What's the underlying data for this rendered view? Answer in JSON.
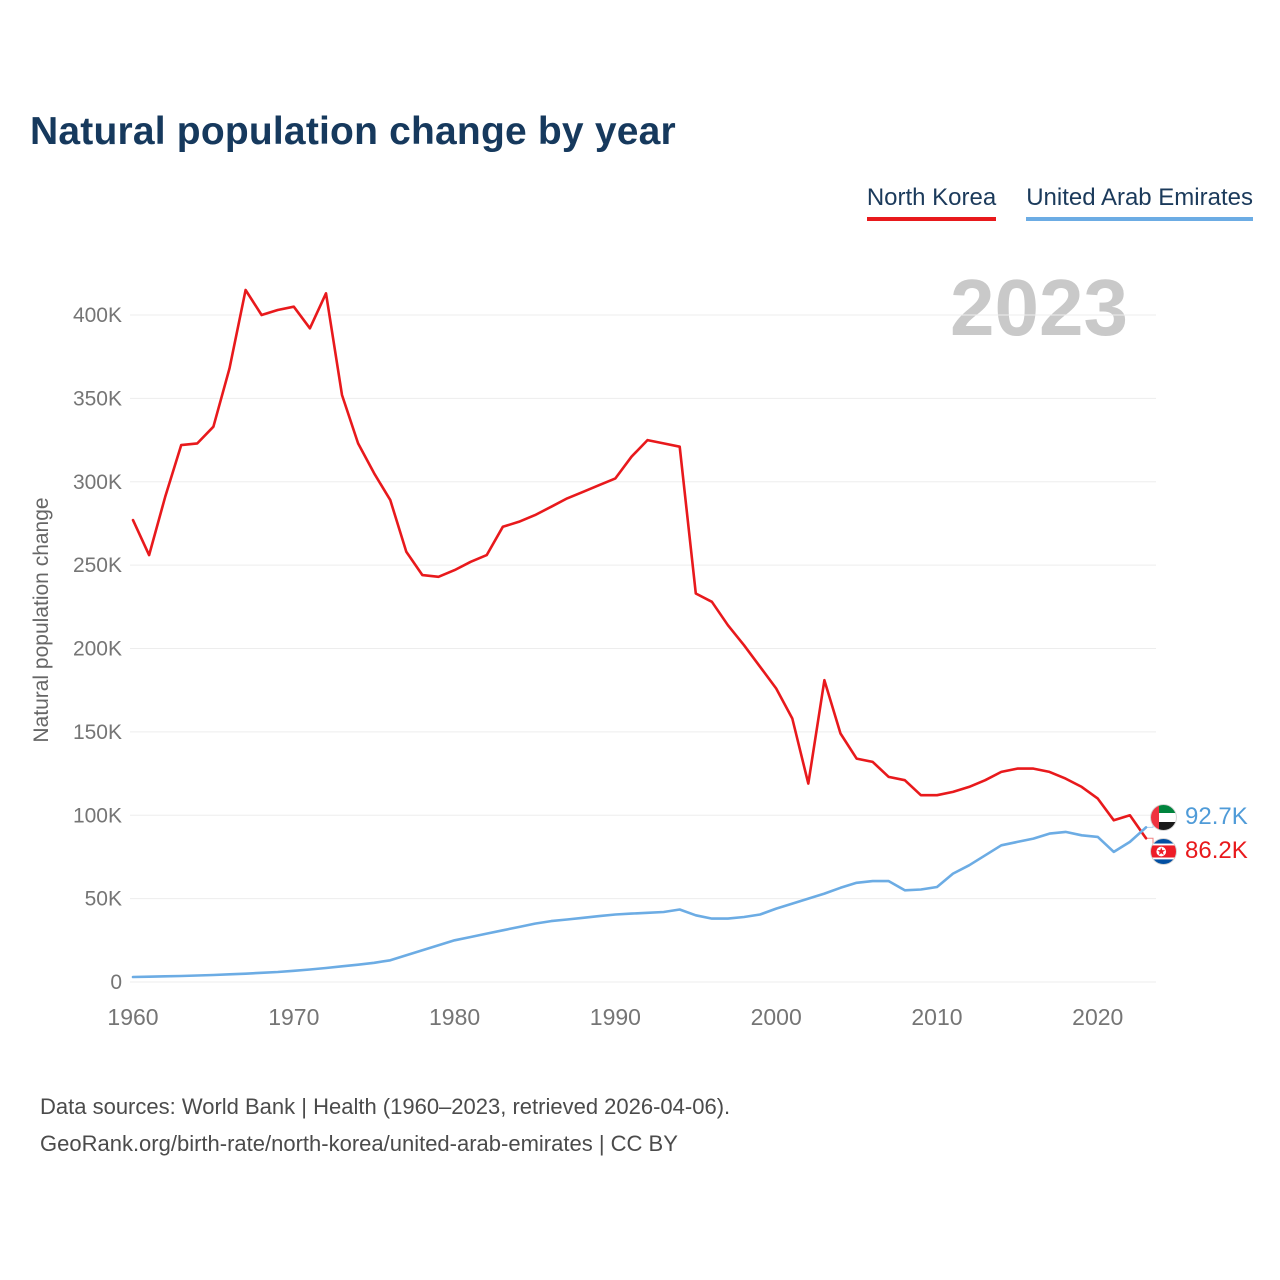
{
  "page": {
    "title": "Natural population change by year",
    "watermark": "2023",
    "y_axis_label": "Natural population change",
    "footer_line1": "Data sources: World Bank | Health (1960–2023, retrieved 2026-04-06).",
    "footer_line2": "GeoRank.org/birth-rate/north-korea/united-arab-emirates | CC BY"
  },
  "legend": [
    {
      "label": "North Korea",
      "color": "#e8191c"
    },
    {
      "label": "United Arab Emirates",
      "color": "#6cace4"
    }
  ],
  "end_labels": [
    {
      "country": "United Arab Emirates",
      "flag": "uae-flag",
      "value": "92.7K",
      "color": "#4f9bd8"
    },
    {
      "country": "North Korea",
      "flag": "north-korea-flag",
      "value": "86.2K",
      "color": "#e8191c"
    }
  ],
  "chart_data": {
    "type": "line",
    "title": "Natural population change by year",
    "xlabel": "",
    "ylabel": "Natural population change",
    "ylim": [
      0,
      430000
    ],
    "grid": "horizontal",
    "legend_position": "top-right",
    "x": [
      1960,
      1961,
      1962,
      1963,
      1964,
      1965,
      1966,
      1967,
      1968,
      1969,
      1970,
      1971,
      1972,
      1973,
      1974,
      1975,
      1976,
      1977,
      1978,
      1979,
      1980,
      1981,
      1982,
      1983,
      1984,
      1985,
      1986,
      1987,
      1988,
      1989,
      1990,
      1991,
      1992,
      1993,
      1994,
      1995,
      1996,
      1997,
      1998,
      1999,
      2000,
      2001,
      2002,
      2003,
      2004,
      2005,
      2006,
      2007,
      2008,
      2009,
      2010,
      2011,
      2012,
      2013,
      2014,
      2015,
      2016,
      2017,
      2018,
      2019,
      2020,
      2021,
      2022,
      2023
    ],
    "x_ticks": [
      {
        "value": 1960,
        "label": "1960"
      },
      {
        "value": 1970,
        "label": "1970"
      },
      {
        "value": 1980,
        "label": "1980"
      },
      {
        "value": 1990,
        "label": "1990"
      },
      {
        "value": 2000,
        "label": "2000"
      },
      {
        "value": 2010,
        "label": "2010"
      },
      {
        "value": 2020,
        "label": "2020"
      }
    ],
    "y_ticks": [
      {
        "value": 0,
        "label": "0"
      },
      {
        "value": 50000,
        "label": "50K"
      },
      {
        "value": 100000,
        "label": "100K"
      },
      {
        "value": 150000,
        "label": "150K"
      },
      {
        "value": 200000,
        "label": "200K"
      },
      {
        "value": 250000,
        "label": "250K"
      },
      {
        "value": 300000,
        "label": "300K"
      },
      {
        "value": 350000,
        "label": "350K"
      },
      {
        "value": 400000,
        "label": "400K"
      }
    ],
    "series": [
      {
        "name": "North Korea",
        "color": "#e8191c",
        "end_value_label": "86.2K",
        "values": [
          277000,
          256000,
          291000,
          322000,
          323000,
          333000,
          368000,
          415000,
          400000,
          403000,
          405000,
          392000,
          413000,
          352000,
          323000,
          305000,
          289000,
          258000,
          244000,
          243000,
          247000,
          252000,
          256000,
          273000,
          276000,
          280000,
          285000,
          290000,
          294000,
          298000,
          302000,
          315000,
          325000,
          323000,
          321000,
          233000,
          228000,
          214000,
          202000,
          189000,
          176000,
          158000,
          119000,
          181000,
          149000,
          134000,
          132000,
          123000,
          121000,
          112000,
          112000,
          114000,
          117000,
          121000,
          126000,
          128000,
          128000,
          126000,
          122000,
          117000,
          110000,
          97000,
          100000,
          86200
        ]
      },
      {
        "name": "United Arab Emirates",
        "color": "#6cace4",
        "end_value_label": "92.7K",
        "values": [
          3000,
          3200,
          3400,
          3600,
          3900,
          4200,
          4600,
          5000,
          5500,
          6000,
          6700,
          7500,
          8400,
          9400,
          10400,
          11500,
          13000,
          16000,
          19000,
          22000,
          25000,
          27000,
          29000,
          31000,
          33000,
          35000,
          36500,
          37500,
          38500,
          39500,
          40500,
          41000,
          41500,
          42000,
          43500,
          40000,
          38000,
          38000,
          39000,
          40500,
          44000,
          47000,
          50000,
          53000,
          56500,
          59500,
          60500,
          60500,
          55000,
          55500,
          57000,
          65000,
          70000,
          76000,
          82000,
          84000,
          86000,
          89000,
          90000,
          88000,
          87000,
          78000,
          84000,
          92700
        ]
      }
    ]
  }
}
